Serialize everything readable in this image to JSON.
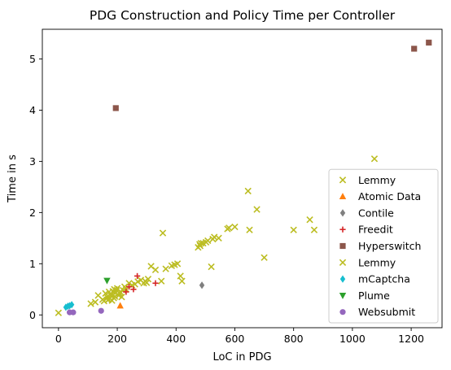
{
  "chart_data": {
    "type": "scatter",
    "title": "PDG Construction and Policy Time per Controller",
    "xlabel": "LoC in PDG",
    "ylabel": "Time in s",
    "xlim": [
      -55,
      1305
    ],
    "ylim": [
      -0.25,
      5.58
    ],
    "xticks": [
      0,
      200,
      400,
      600,
      800,
      1000,
      1200
    ],
    "yticks": [
      0,
      1,
      2,
      3,
      4,
      5
    ],
    "grid": false,
    "legend_position": "lower right",
    "series": [
      {
        "name": "Lemmy",
        "color": "#bcbd22",
        "marker": "x",
        "points": [
          [
            0,
            0.04
          ],
          [
            110,
            0.22
          ],
          [
            125,
            0.25
          ],
          [
            135,
            0.38
          ],
          [
            150,
            0.3
          ],
          [
            155,
            0.27
          ],
          [
            160,
            0.42
          ],
          [
            165,
            0.35
          ],
          [
            168,
            0.29
          ],
          [
            170,
            0.3
          ],
          [
            172,
            0.45
          ],
          [
            175,
            0.32
          ],
          [
            178,
            0.38
          ],
          [
            180,
            0.4
          ],
          [
            182,
            0.28
          ],
          [
            185,
            0.46
          ],
          [
            188,
            0.33
          ],
          [
            190,
            0.5
          ],
          [
            192,
            0.36
          ],
          [
            195,
            0.44
          ],
          [
            198,
            0.48
          ],
          [
            200,
            0.52
          ],
          [
            205,
            0.38
          ],
          [
            208,
            0.42
          ],
          [
            210,
            0.45
          ],
          [
            215,
            0.35
          ],
          [
            220,
            0.48
          ],
          [
            225,
            0.55
          ],
          [
            230,
            0.5
          ],
          [
            240,
            0.62
          ],
          [
            250,
            0.58
          ],
          [
            260,
            0.6
          ],
          [
            270,
            0.65
          ],
          [
            280,
            0.68
          ],
          [
            290,
            0.62
          ],
          [
            295,
            0.66
          ],
          [
            300,
            0.63
          ],
          [
            305,
            0.7
          ],
          [
            315,
            0.95
          ],
          [
            330,
            0.88
          ],
          [
            350,
            0.66
          ],
          [
            355,
            1.6
          ],
          [
            365,
            0.9
          ],
          [
            385,
            0.96
          ],
          [
            395,
            0.98
          ],
          [
            405,
            1.0
          ],
          [
            415,
            0.76
          ],
          [
            420,
            0.66
          ],
          [
            475,
            1.32
          ],
          [
            480,
            1.38
          ],
          [
            482,
            1.35
          ],
          [
            485,
            1.4
          ],
          [
            492,
            1.4
          ],
          [
            502,
            1.42
          ],
          [
            508,
            1.45
          ],
          [
            520,
            0.94
          ],
          [
            525,
            1.48
          ],
          [
            530,
            1.52
          ],
          [
            545,
            1.5
          ],
          [
            575,
            1.68
          ],
          [
            580,
            1.7
          ],
          [
            600,
            1.72
          ],
          [
            645,
            2.42
          ],
          [
            650,
            1.66
          ],
          [
            675,
            2.06
          ],
          [
            700,
            1.12
          ],
          [
            800,
            1.66
          ],
          [
            855,
            1.86
          ],
          [
            870,
            1.66
          ],
          [
            1075,
            3.05
          ]
        ]
      },
      {
        "name": "Atomic Data",
        "color": "#ff7f0e",
        "marker": "triangle",
        "points": [
          [
            210,
            0.18
          ]
        ]
      },
      {
        "name": "Contile",
        "color": "#7f7f7f",
        "marker": "diamond",
        "points": [
          [
            488,
            0.58
          ]
        ]
      },
      {
        "name": "Freedit",
        "color": "#d62728",
        "marker": "plus",
        "points": [
          [
            230,
            0.45
          ],
          [
            240,
            0.55
          ],
          [
            255,
            0.5
          ],
          [
            268,
            0.76
          ],
          [
            330,
            0.62
          ]
        ]
      },
      {
        "name": "Hyperswitch",
        "color": "#8c564b",
        "marker": "square",
        "points": [
          [
            195,
            4.04
          ],
          [
            1210,
            5.2
          ],
          [
            1260,
            5.32
          ]
        ]
      },
      {
        "name": "Lemmy",
        "color": "#bcbd22",
        "marker": "x",
        "points": []
      },
      {
        "name": "mCaptcha",
        "color": "#17becf",
        "marker": "diamond",
        "points": [
          [
            25,
            0.15
          ],
          [
            32,
            0.17
          ],
          [
            38,
            0.18
          ],
          [
            45,
            0.2
          ]
        ]
      },
      {
        "name": "Plume",
        "color": "#2ca02c",
        "marker": "triangle-down",
        "points": [
          [
            165,
            0.67
          ]
        ]
      },
      {
        "name": "Websubmit",
        "color": "#9467bd",
        "marker": "circle",
        "points": [
          [
            38,
            0.05
          ],
          [
            50,
            0.05
          ],
          [
            145,
            0.08
          ]
        ]
      }
    ]
  }
}
